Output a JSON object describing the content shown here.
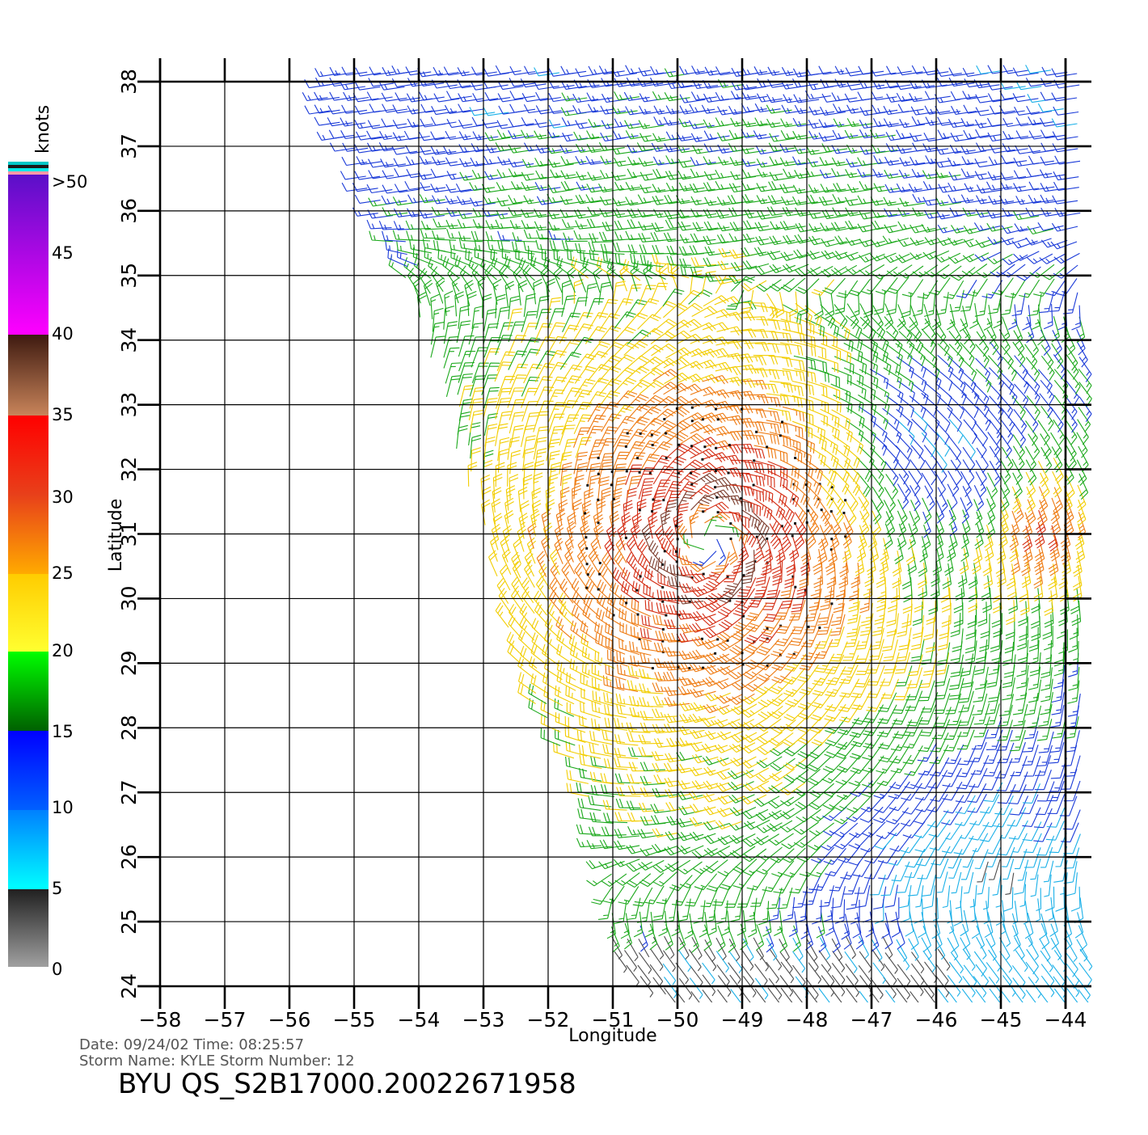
{
  "chart_data": {
    "type": "wind-barb-map",
    "xlabel": "Longitude",
    "ylabel": "Latitude",
    "xlim": [
      -58,
      -44
    ],
    "ylim": [
      24,
      38
    ],
    "x_ticks": [
      -58,
      -57,
      -56,
      -55,
      -54,
      -53,
      -52,
      -51,
      -50,
      -49,
      -48,
      -47,
      -46,
      -45,
      -44
    ],
    "y_ticks": [
      24,
      25,
      26,
      27,
      28,
      29,
      30,
      31,
      32,
      33,
      34,
      35,
      36,
      37,
      38
    ],
    "x_tick_labels": [
      "−58",
      "−57",
      "−56",
      "−55",
      "−54",
      "−53",
      "−52",
      "−51",
      "−50",
      "−49",
      "−48",
      "−47",
      "−46",
      "−45",
      "−44"
    ],
    "y_tick_labels": [
      "24",
      "25",
      "26",
      "27",
      "28",
      "29",
      "30",
      "31",
      "32",
      "33",
      "34",
      "35",
      "36",
      "37",
      "38"
    ],
    "grid": true,
    "storm_center": {
      "lon": -49.5,
      "lat": 30.9
    },
    "swath_polygon": [
      [
        -55.0,
        38.3
      ],
      [
        -45.0,
        38.3
      ],
      [
        -44.0,
        38.3
      ],
      [
        -43.7,
        38.3
      ],
      [
        -43.7,
        23.9
      ],
      [
        -50.2,
        23.9
      ],
      [
        -51.0,
        24.4
      ],
      [
        -51.2,
        26.3
      ],
      [
        -51.5,
        27.2
      ],
      [
        -52.4,
        28.6
      ],
      [
        -52.9,
        30.8
      ],
      [
        -53.4,
        32.2
      ],
      [
        -53.8,
        33.5
      ],
      [
        -54.3,
        35.2
      ],
      [
        -55.0,
        36.8
      ],
      [
        -55.6,
        37.9
      ]
    ],
    "speed_bands": [
      {
        "min": 0,
        "max": 5,
        "color": "#4a4a4a"
      },
      {
        "min": 5,
        "max": 10,
        "color": "#1ab0e8"
      },
      {
        "min": 10,
        "max": 15,
        "color": "#1a3ad8"
      },
      {
        "min": 15,
        "max": 20,
        "color": "#1aa81a"
      },
      {
        "min": 20,
        "max": 25,
        "color": "#f2cd00"
      },
      {
        "min": 25,
        "max": 30,
        "color": "#ee7a10"
      },
      {
        "min": 30,
        "max": 35,
        "color": "#d42a10"
      },
      {
        "min": 35,
        "max": 40,
        "color": "#7a3a2a"
      },
      {
        "min": 40,
        "max": 50,
        "color": "#a020c8"
      },
      {
        "min": 50,
        "max": 100,
        "color": "#6a18c0"
      }
    ]
  },
  "colorbar": {
    "title": "knots",
    "labels": [
      ">50",
      "45",
      "40",
      "35",
      "30",
      "25",
      "20",
      "15",
      "10",
      "5",
      "0"
    ],
    "segments": [
      {
        "range": "40-50",
        "top": "#5a10c8",
        "bottom": "#ff00ff"
      },
      {
        "range": "35-40",
        "top": "#3e1a10",
        "bottom": "#c8845a"
      },
      {
        "range": "30-35",
        "top": "#ff0000",
        "bottom": "#e8401a"
      },
      {
        "range": "25-30",
        "top": "#e8401a",
        "bottom": "#ffaa00"
      },
      {
        "range": "20-25",
        "top": "#ffcc00",
        "bottom": "#ffff30"
      },
      {
        "range": "15-20",
        "top": "#00ff00",
        "bottom": "#006000"
      },
      {
        "range": "10-15",
        "top": "#0000ff",
        "bottom": "#0060ff"
      },
      {
        "range": "5-10",
        "top": "#0080ff",
        "bottom": "#00ffff"
      },
      {
        "range": "0-5",
        "top": "#202020",
        "bottom": "#a0a0a0"
      }
    ],
    "cap_colors": [
      "#00c8c8",
      "#1a1a1a",
      "#00e8e8",
      "#ff9aa8"
    ]
  },
  "footer": {
    "date_line": "Date: 09/24/02   Time: 08:25:57",
    "storm_line": "Storm  Name:  KYLE    Storm  Number:  12",
    "product_line": "BYU  QS_S2B17000.20022671958"
  }
}
